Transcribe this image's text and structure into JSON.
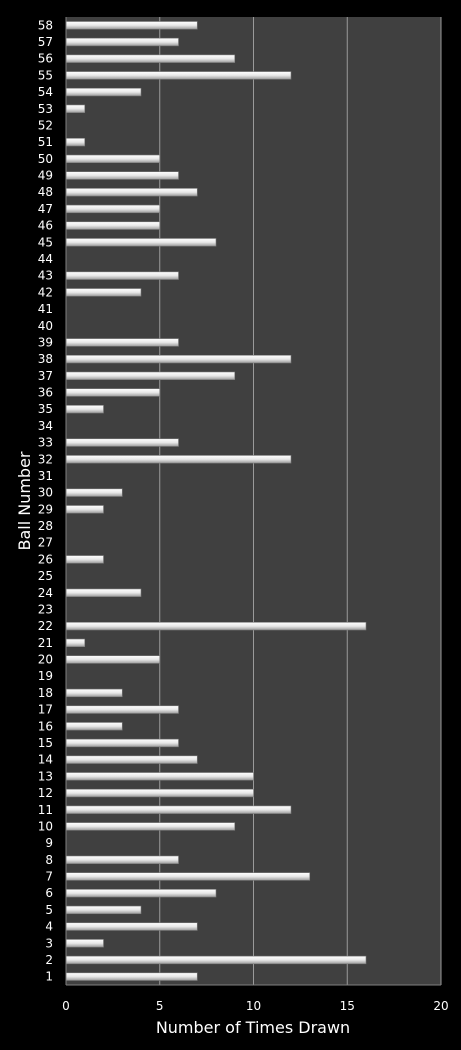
{
  "chart_data": {
    "type": "bar",
    "orientation": "horizontal",
    "title": "",
    "xlabel": "Number of Times Drawn",
    "ylabel": "Ball Number",
    "xlim": [
      0,
      20
    ],
    "x_ticks": [
      "0",
      "5",
      "10",
      "15",
      "20"
    ],
    "grid": "vertical",
    "legend": "none",
    "categories": [
      "1",
      "2",
      "3",
      "4",
      "5",
      "6",
      "7",
      "8",
      "9",
      "10",
      "11",
      "12",
      "13",
      "14",
      "15",
      "16",
      "17",
      "18",
      "19",
      "20",
      "21",
      "22",
      "23",
      "24",
      "25",
      "26",
      "27",
      "28",
      "29",
      "30",
      "31",
      "32",
      "33",
      "34",
      "35",
      "36",
      "37",
      "38",
      "39",
      "40",
      "41",
      "42",
      "43",
      "44",
      "45",
      "46",
      "47",
      "48",
      "49",
      "50",
      "51",
      "52",
      "53",
      "54",
      "55",
      "56",
      "57",
      "58"
    ],
    "values": [
      7,
      16,
      2,
      7,
      4,
      8,
      13,
      6,
      0,
      9,
      12,
      10,
      10,
      7,
      6,
      3,
      6,
      3,
      0,
      5,
      1,
      16,
      0,
      4,
      0,
      2,
      0,
      0,
      2,
      3,
      0,
      12,
      6,
      0,
      2,
      5,
      9,
      12,
      6,
      0,
      0,
      4,
      6,
      0,
      8,
      5,
      5,
      7,
      6,
      5,
      1,
      0,
      1,
      4,
      12,
      9,
      6,
      7
    ],
    "colors": {
      "background": "#000000",
      "plot_area": "#404040",
      "bar": "#e8e8e8",
      "text": "#ffffff",
      "grid": "#9a9a9a"
    }
  }
}
